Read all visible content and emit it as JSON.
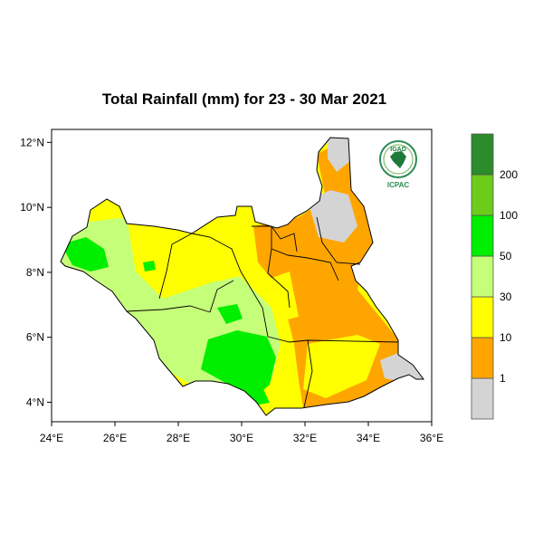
{
  "title": "Total Rainfall (mm) for 23 - 30 Mar 2021",
  "logo": {
    "top_text": "IGAD",
    "bottom_text": "ICPAC"
  },
  "map": {
    "region": "South Sudan",
    "lon_range": [
      24,
      36
    ],
    "lat_range": [
      3.4,
      12.4
    ],
    "x_ticks": [
      "24°E",
      "26°E",
      "28°E",
      "30°E",
      "32°E",
      "34°E",
      "36°E"
    ],
    "y_ticks": [
      "4°N",
      "6°N",
      "8°N",
      "10°N",
      "12°N"
    ]
  },
  "legend": {
    "bins": [
      {
        "color": "#d4d4d4"
      },
      {
        "color": "#ffa500"
      },
      {
        "color": "#ffff00"
      },
      {
        "color": "#c5ff7a"
      },
      {
        "color": "#00ee00"
      },
      {
        "color": "#6ccc1a"
      },
      {
        "color": "#2a8c2a"
      }
    ],
    "labels": [
      "1",
      "10",
      "30",
      "50",
      "100",
      "200"
    ]
  }
}
